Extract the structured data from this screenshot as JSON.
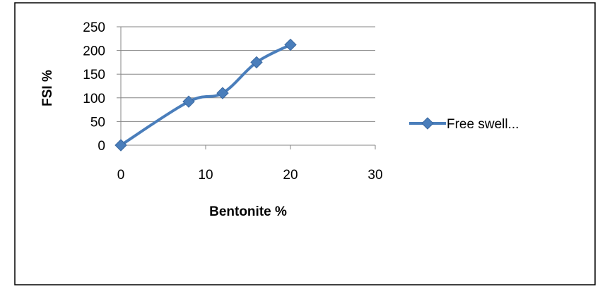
{
  "chart_data": {
    "type": "line",
    "title": "",
    "xlabel": "Bentonite %",
    "ylabel": "FSI %",
    "xlim": [
      0,
      30
    ],
    "ylim": [
      0,
      250
    ],
    "x_ticks": [
      0,
      10,
      20,
      30
    ],
    "y_ticks": [
      0,
      50,
      100,
      150,
      200,
      250
    ],
    "grid": "horizontal",
    "legend": "right",
    "series": [
      {
        "name": "Free swell...",
        "color": "#4a7ebb",
        "marker": "diamond",
        "smooth": true,
        "points": [
          {
            "x": 0,
            "y": 0
          },
          {
            "x": 8,
            "y": 92
          },
          {
            "x": 12,
            "y": 110
          },
          {
            "x": 16,
            "y": 175
          },
          {
            "x": 20,
            "y": 212
          }
        ]
      }
    ]
  }
}
